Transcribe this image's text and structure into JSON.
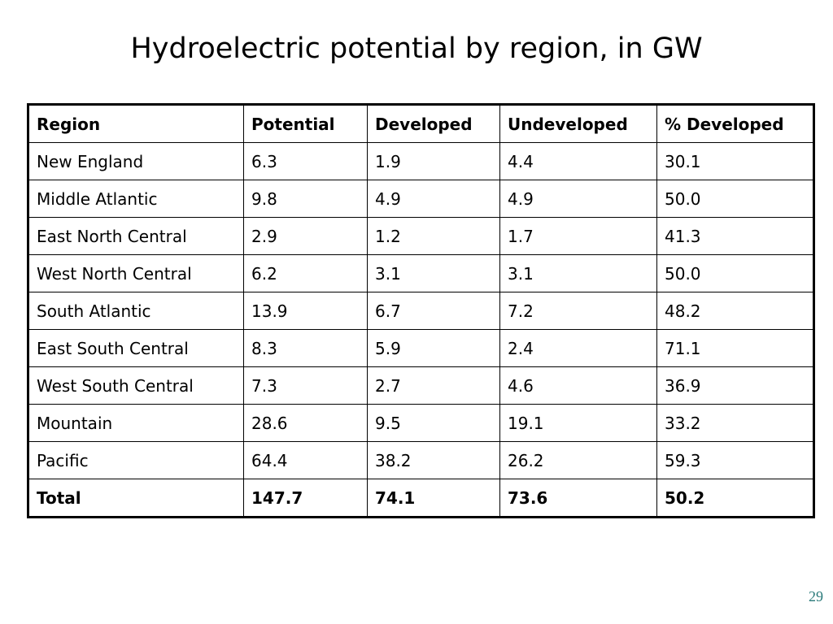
{
  "slide": {
    "title": "Hydroelectric potential by region, in GW",
    "page_number": "29"
  },
  "table": {
    "headers": [
      "Region",
      "Potential",
      "Developed",
      "Undeveloped",
      "% Developed"
    ],
    "rows": [
      [
        "New England",
        "6.3",
        "1.9",
        "4.4",
        "30.1"
      ],
      [
        "Middle Atlantic",
        "9.8",
        "4.9",
        "4.9",
        "50.0"
      ],
      [
        "East North Central",
        "2.9",
        "1.2",
        "1.7",
        "41.3"
      ],
      [
        "West North Central",
        "6.2",
        "3.1",
        "3.1",
        "50.0"
      ],
      [
        "South Atlantic",
        "13.9",
        "6.7",
        "7.2",
        "48.2"
      ],
      [
        "East South Central",
        "8.3",
        "5.9",
        "2.4",
        "71.1"
      ],
      [
        "West South Central",
        "7.3",
        "2.7",
        "4.6",
        "36.9"
      ],
      [
        "Mountain",
        "28.6",
        "9.5",
        "19.1",
        "33.2"
      ],
      [
        "Pacific",
        "64.4",
        "38.2",
        "26.2",
        "59.3"
      ]
    ],
    "total": [
      "Total",
      "147.7",
      "74.1",
      "73.6",
      "50.2"
    ]
  }
}
